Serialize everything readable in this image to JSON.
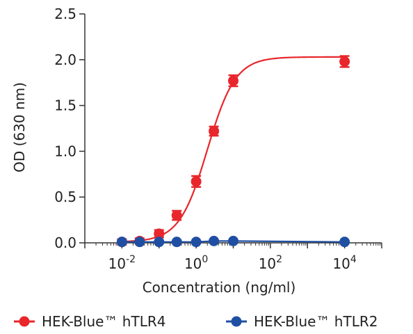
{
  "chart_data": {
    "type": "scatter",
    "title": "",
    "xlabel": "Concentration (ng/ml)",
    "ylabel": "OD (630 nm)",
    "x_scale": "log10",
    "xlim": [
      0.001,
      100000
    ],
    "ylim": [
      0,
      2.5
    ],
    "x_ticks": [
      {
        "value": 0.01,
        "base": "10",
        "exp": "-2"
      },
      {
        "value": 1,
        "base": "10",
        "exp": "0"
      },
      {
        "value": 100,
        "base": "10",
        "exp": "2"
      },
      {
        "value": 10000,
        "base": "10",
        "exp": "4"
      }
    ],
    "y_ticks": [
      {
        "value": 0.0,
        "label": "0.0"
      },
      {
        "value": 0.5,
        "label": "0.5"
      },
      {
        "value": 1.0,
        "label": "1.0"
      },
      {
        "value": 1.5,
        "label": "1.5"
      },
      {
        "value": 2.0,
        "label": "2.0"
      },
      {
        "value": 2.5,
        "label": "2.5"
      }
    ],
    "grid": false,
    "legend_position": "bottom",
    "series": [
      {
        "name": "HEK-Blue™ hTLR4",
        "color": "#e8262c",
        "fit": "sigmoid",
        "x": [
          0.01,
          0.03,
          0.1,
          0.3,
          1,
          3,
          10,
          10000
        ],
        "y": [
          0.01,
          0.02,
          0.1,
          0.3,
          0.67,
          1.22,
          1.77,
          1.98
        ],
        "err": [
          0.03,
          0.03,
          0.04,
          0.05,
          0.06,
          0.05,
          0.06,
          0.06
        ]
      },
      {
        "name": "HEK-Blue™ hTLR2",
        "color": "#1f4fa3",
        "fit": "line",
        "x": [
          0.01,
          0.03,
          0.1,
          0.3,
          1,
          3,
          10,
          10000
        ],
        "y": [
          0.01,
          0.01,
          0.01,
          0.01,
          0.01,
          0.02,
          0.02,
          0.01
        ],
        "err": [
          0.01,
          0.01,
          0.01,
          0.01,
          0.01,
          0.01,
          0.01,
          0.01
        ]
      }
    ]
  }
}
